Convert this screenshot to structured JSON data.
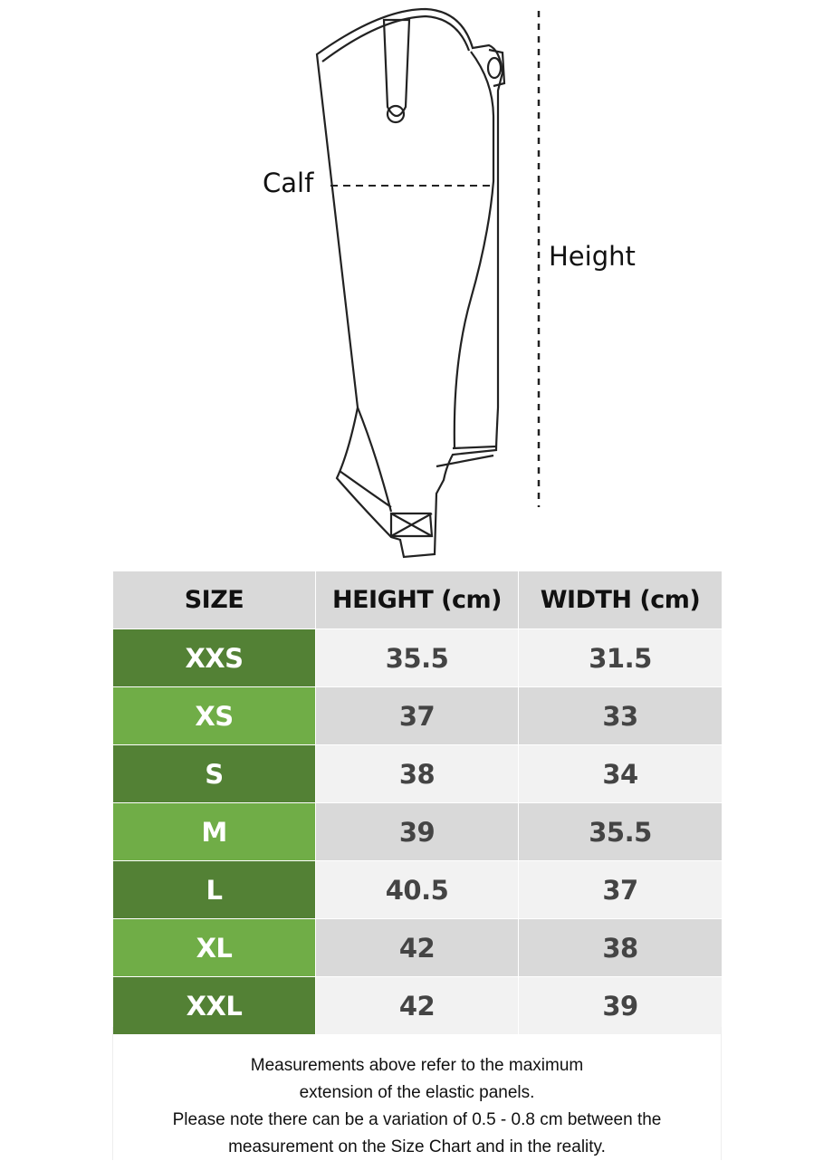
{
  "diagram": {
    "calf_label": "Calf",
    "height_label": "Height"
  },
  "table": {
    "headers": [
      "SIZE",
      "HEIGHT (cm)",
      "WIDTH (cm)"
    ],
    "rows": [
      {
        "size": "XXS",
        "height": "35.5",
        "width": "31.5"
      },
      {
        "size": "XS",
        "height": "37",
        "width": "33"
      },
      {
        "size": "S",
        "height": "38",
        "width": "34"
      },
      {
        "size": "M",
        "height": "39",
        "width": "35.5"
      },
      {
        "size": "L",
        "height": "40.5",
        "width": "37"
      },
      {
        "size": "XL",
        "height": "42",
        "width": "38"
      },
      {
        "size": "XXL",
        "height": "42",
        "width": "39"
      }
    ]
  },
  "colors": {
    "dark_green": "#538135",
    "light_green": "#70ad47",
    "header_gray": "#d9d9d9"
  },
  "note": {
    "lines": [
      "Measurements above refer to the maximum",
      "extension of the elastic panels.",
      "Please note there can be a variation of 0.5 - 0.8 cm between the",
      "measurement on the Size Chart and in the reality."
    ]
  }
}
